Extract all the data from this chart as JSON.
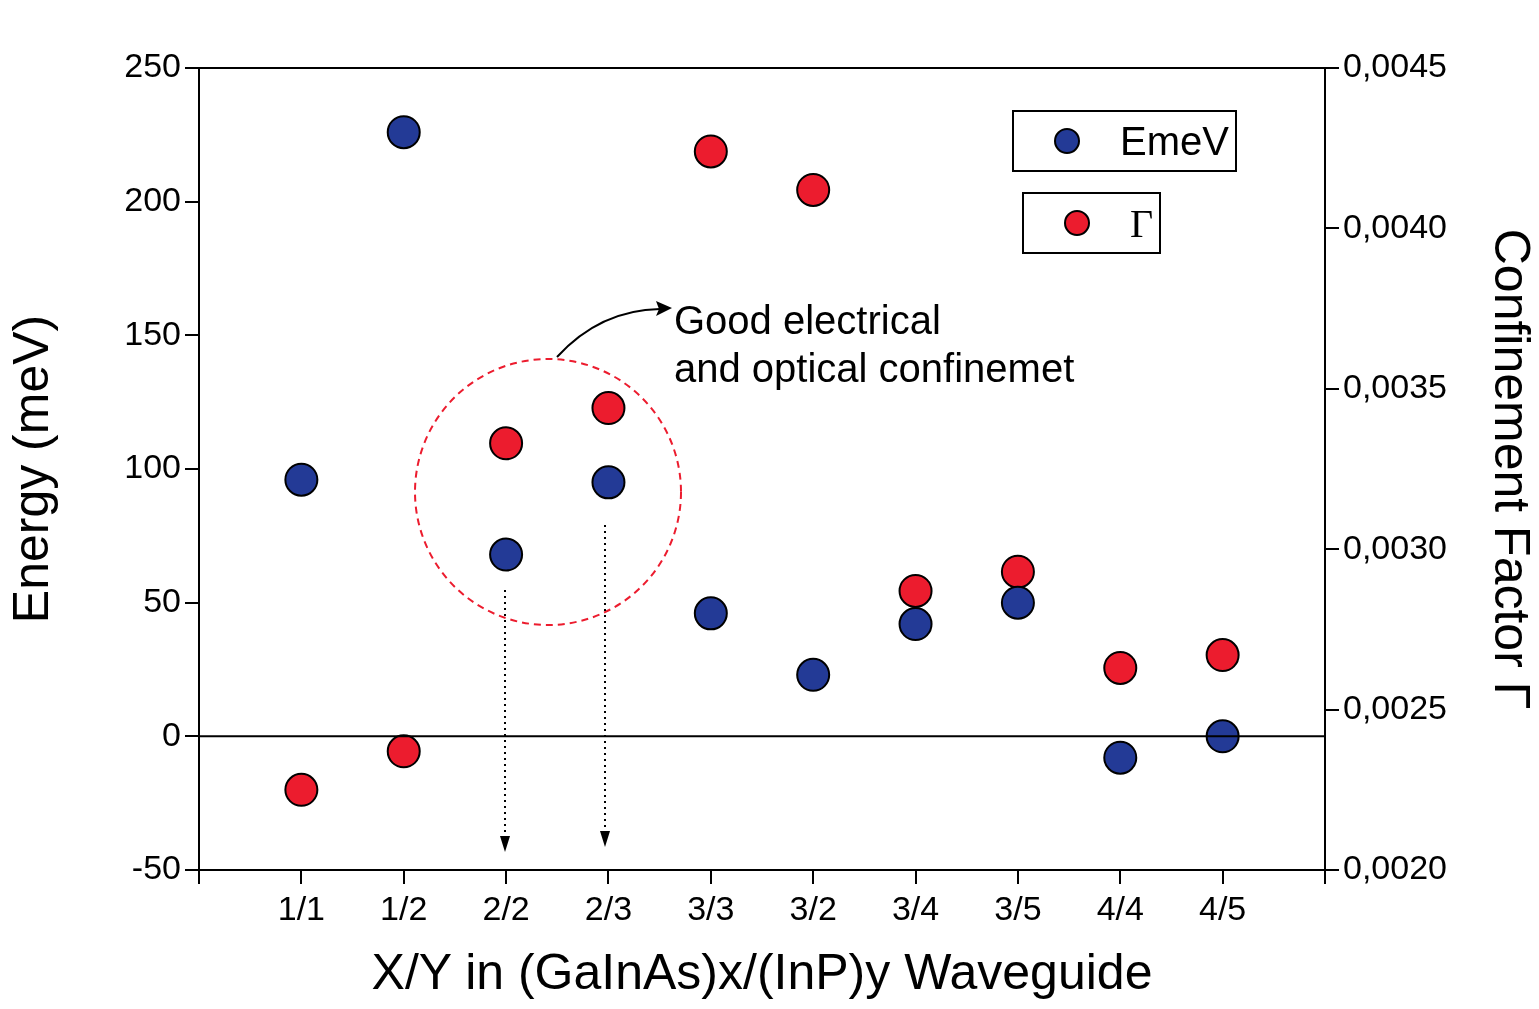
{
  "chart_data": {
    "type": "scatter",
    "xlabel": "X/Y in (GaInAs)x/(InP)y Waveguide",
    "ylabel": "Energy (meV)",
    "y2label": "Confinement Factor Γ",
    "categories": [
      "1/1",
      "1/2",
      "2/2",
      "2/3",
      "3/3",
      "3/2",
      "3/4",
      "3/5",
      "4/4",
      "4/5"
    ],
    "series": [
      {
        "name": "EmeV",
        "color": "#233a96",
        "values": [
          96,
          226,
          68,
          95,
          46,
          23,
          42,
          50,
          -8,
          0
        ]
      },
      {
        "name": "Γ",
        "color": "#ec1c2e",
        "axis": "y2",
        "values": [
          0.00225,
          0.00237,
          0.00333,
          0.00344,
          0.00424,
          0.00412,
          0.00287,
          0.00293,
          0.00263,
          0.00267
        ]
      }
    ],
    "ylim": [
      -50,
      250
    ],
    "yticks": [
      -50,
      0,
      50,
      100,
      150,
      200,
      250
    ],
    "y2lim": [
      0.002,
      0.0045
    ],
    "y2ticks": [
      {
        "value": 0.002,
        "label": "0,0020"
      },
      {
        "value": 0.0025,
        "label": "0,0025"
      },
      {
        "value": 0.003,
        "label": "0,0030"
      },
      {
        "value": 0.0035,
        "label": "0,0035"
      },
      {
        "value": 0.004,
        "label": "0,0040"
      },
      {
        "value": 0.0045,
        "label": "0,0045"
      }
    ],
    "ref_lines": [
      {
        "axis": "y",
        "value": 0,
        "color": "#000000"
      }
    ],
    "annotations": [
      "Good electrical",
      "and optical confinemet"
    ],
    "grid": false,
    "legend": "top right",
    "marker": "circle"
  }
}
